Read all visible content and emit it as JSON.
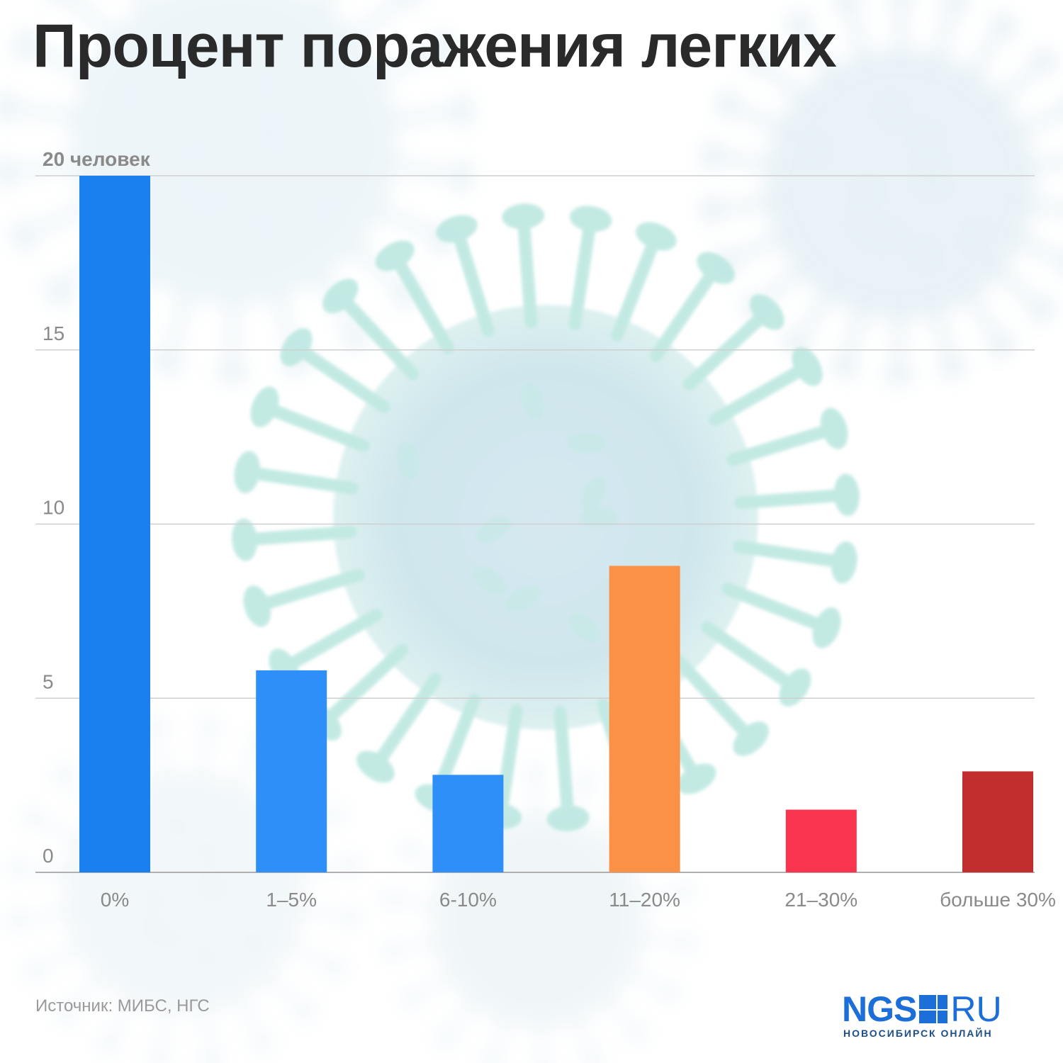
{
  "title": "Процент поражения легких",
  "source": "Источник: МИБС, НГС",
  "logo": {
    "brand": "NGS",
    "suffix": "RU",
    "tagline": "НОВОСИБИРСК ОНЛАЙН",
    "color": "#1c6fd9"
  },
  "chart_data": {
    "type": "bar",
    "title": "Процент поражения легких",
    "xlabel": "",
    "ylabel": "",
    "unit_label": "20 человек",
    "categories": [
      "0%",
      "1–5%",
      "6-10%",
      "11–20%",
      "21–30%",
      "больше 30%"
    ],
    "values": [
      20,
      5.8,
      2.8,
      8.8,
      1.8,
      2.9
    ],
    "colors": [
      "#1a80f0",
      "#2f8ff8",
      "#2f8ff8",
      "#fb9146",
      "#f8344f",
      "#c22e2e"
    ],
    "yticks": [
      0,
      5,
      10,
      15,
      20
    ],
    "ytick_labels": [
      "0",
      "5",
      "10",
      "15",
      "20 человек"
    ],
    "ylim": [
      0,
      20
    ],
    "grid": true,
    "legend": "none"
  }
}
